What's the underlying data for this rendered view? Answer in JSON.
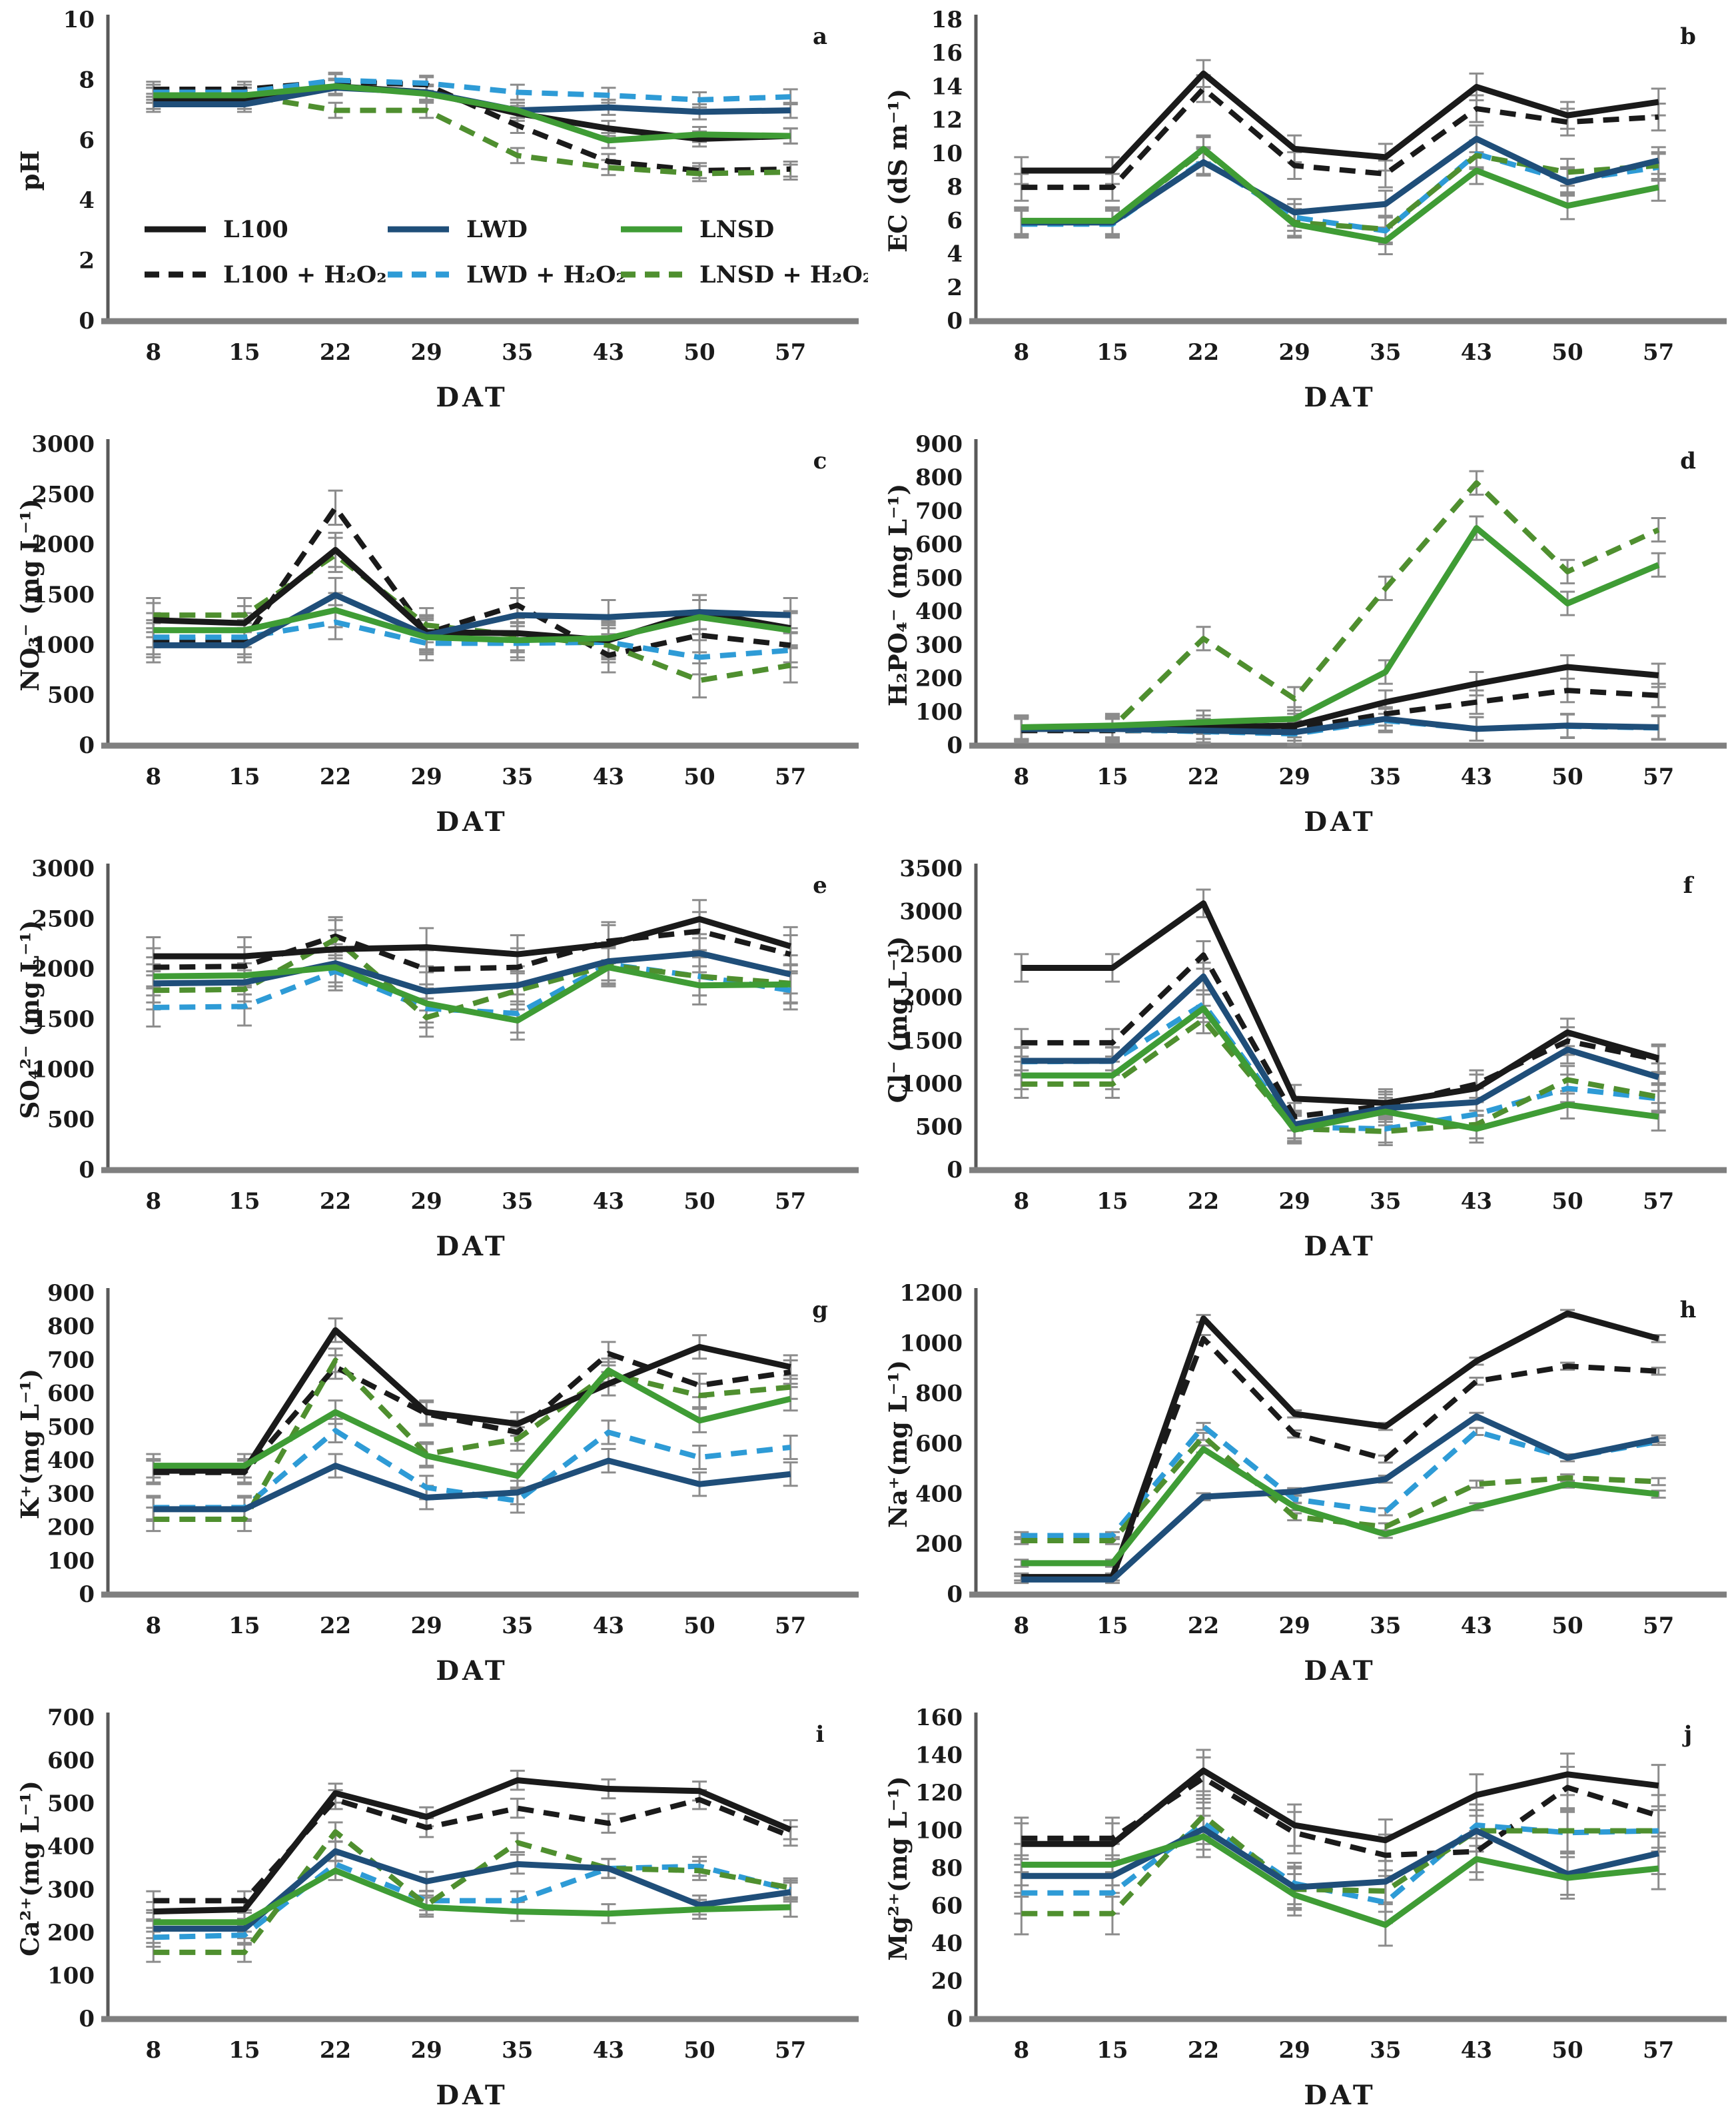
{
  "figure": {
    "xlabel": "DAT",
    "x_categories": [
      "8",
      "15",
      "22",
      "29",
      "35",
      "43",
      "50",
      "57"
    ],
    "axis_color": "#595959",
    "baseline_color": "#7f7f7f",
    "error_bar_color": "#8c8c8c",
    "series_styles": {
      "L100": {
        "color": "#1a1a1a",
        "dash": false
      },
      "LWD": {
        "color": "#1f4e79",
        "dash": false
      },
      "LNSD": {
        "color": "#3f9c35",
        "dash": false
      },
      "L100 + H₂O₂": {
        "color": "#1a1a1a",
        "dash": true
      },
      "LWD + H₂O₂": {
        "color": "#2e9bd6",
        "dash": true
      },
      "LNSD + H₂O₂": {
        "color": "#4f8f2f",
        "dash": true
      }
    },
    "legend": {
      "row1": [
        "L100",
        "LWD",
        "LNSD"
      ],
      "row2": [
        "L100 + H₂O₂",
        "LWD + H₂O₂",
        "LNSD + H₂O₂"
      ]
    }
  },
  "chart_data": [
    {
      "type": "line",
      "letter": "a",
      "ylabel": "pH",
      "ylim": [
        0,
        10
      ],
      "ytick": 2,
      "err": 0.25,
      "categories": [
        "8",
        "15",
        "22",
        "29",
        "35",
        "43",
        "50",
        "57"
      ],
      "series": [
        {
          "name": "L100",
          "values": [
            7.3,
            7.3,
            7.8,
            7.6,
            6.9,
            6.4,
            6.05,
            6.15
          ]
        },
        {
          "name": "L100 + H₂O₂",
          "values": [
            7.7,
            7.7,
            7.95,
            7.85,
            6.5,
            5.3,
            5.0,
            5.05
          ]
        },
        {
          "name": "LWD",
          "values": [
            7.2,
            7.2,
            7.75,
            7.6,
            7.0,
            7.1,
            6.95,
            7.0
          ]
        },
        {
          "name": "LWD + H₂O₂",
          "values": [
            7.6,
            7.6,
            8.0,
            7.9,
            7.6,
            7.5,
            7.35,
            7.45
          ]
        },
        {
          "name": "LNSD",
          "values": [
            7.5,
            7.5,
            7.8,
            7.55,
            7.0,
            6.0,
            6.2,
            6.15
          ]
        },
        {
          "name": "LNSD + H₂O₂",
          "values": [
            7.5,
            7.5,
            7.0,
            7.0,
            5.5,
            5.1,
            4.9,
            4.95
          ]
        }
      ],
      "has_legend": true
    },
    {
      "type": "line",
      "letter": "b",
      "ylabel": "EC (dS m⁻¹)",
      "ylim": [
        0,
        18
      ],
      "ytick": 2,
      "err": 0.8,
      "categories": [
        "8",
        "15",
        "22",
        "29",
        "35",
        "43",
        "50",
        "57"
      ],
      "series": [
        {
          "name": "L100",
          "values": [
            9.0,
            9.0,
            14.8,
            10.3,
            9.8,
            14.0,
            12.3,
            13.1
          ]
        },
        {
          "name": "L100 + H₂O₂",
          "values": [
            8.0,
            8.0,
            13.9,
            9.3,
            8.8,
            12.7,
            11.9,
            12.2
          ]
        },
        {
          "name": "LWD",
          "values": [
            5.9,
            5.9,
            9.5,
            6.5,
            7.0,
            10.9,
            8.3,
            9.6
          ]
        },
        {
          "name": "LWD + H₂O₂",
          "values": [
            5.8,
            5.8,
            9.6,
            6.2,
            5.4,
            10.0,
            8.4,
            9.2
          ]
        },
        {
          "name": "LNSD",
          "values": [
            6.0,
            6.0,
            10.3,
            5.8,
            4.8,
            9.0,
            6.9,
            8.0
          ]
        },
        {
          "name": "LNSD + H₂O₂",
          "values": [
            6.0,
            6.0,
            10.2,
            5.9,
            5.5,
            9.9,
            8.9,
            9.3
          ]
        }
      ],
      "has_legend": false
    },
    {
      "type": "line",
      "letter": "c",
      "ylabel": "NO₃⁻ (mg L⁻¹)",
      "ylim": [
        0,
        3000
      ],
      "ytick": 500,
      "err": 170,
      "categories": [
        "8",
        "15",
        "22",
        "29",
        "35",
        "43",
        "50",
        "57"
      ],
      "series": [
        {
          "name": "L100",
          "values": [
            1250,
            1220,
            1950,
            1130,
            1120,
            1050,
            1330,
            1170
          ]
        },
        {
          "name": "L100 + H₂O₂",
          "values": [
            1050,
            1050,
            2370,
            1120,
            1400,
            900,
            1100,
            1000
          ]
        },
        {
          "name": "LWD",
          "values": [
            1000,
            1000,
            1500,
            1100,
            1300,
            1280,
            1330,
            1300
          ]
        },
        {
          "name": "LWD + H₂O₂",
          "values": [
            1080,
            1080,
            1230,
            1020,
            1020,
            1030,
            880,
            950
          ]
        },
        {
          "name": "LNSD",
          "values": [
            1150,
            1150,
            1350,
            1080,
            1050,
            1070,
            1280,
            1150
          ]
        },
        {
          "name": "LNSD + H₂O₂",
          "values": [
            1300,
            1300,
            1900,
            1200,
            1100,
            1000,
            650,
            800
          ]
        }
      ],
      "has_legend": false
    },
    {
      "type": "line",
      "letter": "d",
      "ylabel": "H₂PO₄⁻ (mg L⁻¹)",
      "ylim": [
        0,
        900
      ],
      "ytick": 100,
      "err": 35,
      "categories": [
        "8",
        "15",
        "22",
        "29",
        "35",
        "43",
        "50",
        "57"
      ],
      "series": [
        {
          "name": "L100",
          "values": [
            50,
            50,
            55,
            60,
            130,
            185,
            235,
            210
          ]
        },
        {
          "name": "L100 + H₂O₂",
          "values": [
            45,
            45,
            45,
            50,
            95,
            130,
            165,
            150
          ]
        },
        {
          "name": "LWD",
          "values": [
            50,
            50,
            45,
            40,
            80,
            50,
            60,
            55
          ]
        },
        {
          "name": "LWD + H₂O₂",
          "values": [
            50,
            48,
            42,
            35,
            75,
            50,
            58,
            53
          ]
        },
        {
          "name": "LNSD",
          "values": [
            55,
            60,
            70,
            80,
            220,
            650,
            425,
            540
          ]
        },
        {
          "name": "LNSD + H₂O₂",
          "values": [
            55,
            55,
            320,
            140,
            470,
            785,
            520,
            645
          ]
        }
      ],
      "has_legend": false
    },
    {
      "type": "line",
      "letter": "e",
      "ylabel": "SO₄²⁻ (mg L⁻¹)",
      "ylim": [
        0,
        3000
      ],
      "ytick": 500,
      "err": 190,
      "categories": [
        "8",
        "15",
        "22",
        "29",
        "35",
        "43",
        "50",
        "57"
      ],
      "series": [
        {
          "name": "L100",
          "values": [
            2130,
            2130,
            2200,
            2220,
            2150,
            2250,
            2500,
            2230
          ]
        },
        {
          "name": "L100 + H₂O₂",
          "values": [
            2020,
            2030,
            2330,
            2000,
            2020,
            2280,
            2380,
            2150
          ]
        },
        {
          "name": "LWD",
          "values": [
            1860,
            1870,
            2060,
            1780,
            1840,
            2080,
            2160,
            1950
          ]
        },
        {
          "name": "LWD + H₂O₂",
          "values": [
            1620,
            1630,
            1980,
            1610,
            1560,
            2050,
            1930,
            1790
          ]
        },
        {
          "name": "LNSD",
          "values": [
            1930,
            1940,
            2020,
            1660,
            1490,
            2020,
            1840,
            1850
          ]
        },
        {
          "name": "LNSD + H₂O₂",
          "values": [
            1790,
            1800,
            2300,
            1520,
            1790,
            2040,
            1930,
            1860
          ]
        }
      ],
      "has_legend": false
    },
    {
      "type": "line",
      "letter": "f",
      "ylabel": "Cl⁻ (mg L⁻¹)",
      "ylim": [
        0,
        3500
      ],
      "ytick": 500,
      "err": 160,
      "categories": [
        "8",
        "15",
        "22",
        "29",
        "35",
        "43",
        "50",
        "57"
      ],
      "series": [
        {
          "name": "L100",
          "values": [
            2350,
            2350,
            3100,
            830,
            780,
            950,
            1600,
            1300
          ]
        },
        {
          "name": "L100 + H₂O₂",
          "values": [
            1480,
            1480,
            2500,
            620,
            750,
            1000,
            1500,
            1280
          ]
        },
        {
          "name": "LWD",
          "values": [
            1270,
            1270,
            2250,
            530,
            720,
            790,
            1400,
            1080
          ]
        },
        {
          "name": "LWD + H₂O₂",
          "values": [
            1260,
            1265,
            1930,
            500,
            480,
            650,
            950,
            830
          ]
        },
        {
          "name": "LNSD",
          "values": [
            1100,
            1100,
            1880,
            470,
            680,
            480,
            760,
            620
          ]
        },
        {
          "name": "LNSD + H₂O₂",
          "values": [
            1000,
            1000,
            1750,
            480,
            450,
            530,
            1050,
            850
          ]
        }
      ],
      "has_legend": false
    },
    {
      "type": "line",
      "letter": "g",
      "ylabel": "K⁺(mg L⁻¹)",
      "ylim": [
        0,
        900
      ],
      "ytick": 100,
      "err": 35,
      "categories": [
        "8",
        "15",
        "22",
        "29",
        "35",
        "43",
        "50",
        "57"
      ],
      "series": [
        {
          "name": "L100",
          "values": [
            370,
            370,
            790,
            545,
            510,
            630,
            740,
            680
          ]
        },
        {
          "name": "L100 + H₂O₂",
          "values": [
            365,
            365,
            680,
            540,
            485,
            720,
            625,
            665
          ]
        },
        {
          "name": "LWD",
          "values": [
            255,
            255,
            385,
            290,
            305,
            400,
            330,
            360
          ]
        },
        {
          "name": "LWD + H₂O₂",
          "values": [
            260,
            260,
            490,
            320,
            280,
            485,
            410,
            440
          ]
        },
        {
          "name": "LNSD",
          "values": [
            385,
            385,
            545,
            415,
            355,
            670,
            520,
            585
          ]
        },
        {
          "name": "LNSD + H₂O₂",
          "values": [
            225,
            225,
            700,
            420,
            465,
            660,
            595,
            620
          ]
        }
      ],
      "has_legend": false
    },
    {
      "type": "line",
      "letter": "h",
      "ylabel": "Na⁺(mg L⁻¹)",
      "ylim": [
        0,
        1200
      ],
      "ytick": 200,
      "err": 14,
      "categories": [
        "8",
        "15",
        "22",
        "29",
        "35",
        "43",
        "50",
        "57"
      ],
      "series": [
        {
          "name": "L100",
          "values": [
            70,
            70,
            1100,
            720,
            670,
            930,
            1120,
            1020
          ]
        },
        {
          "name": "L100 + H₂O₂",
          "values": [
            70,
            70,
            1020,
            640,
            540,
            850,
            910,
            890
          ]
        },
        {
          "name": "LWD",
          "values": [
            60,
            60,
            390,
            410,
            460,
            710,
            545,
            620
          ]
        },
        {
          "name": "LWD + H₂O₂",
          "values": [
            235,
            235,
            670,
            380,
            330,
            650,
            545,
            610
          ]
        },
        {
          "name": "LNSD",
          "values": [
            125,
            125,
            580,
            350,
            240,
            350,
            440,
            400
          ]
        },
        {
          "name": "LNSD + H₂O₂",
          "values": [
            215,
            215,
            630,
            310,
            270,
            440,
            465,
            450
          ]
        }
      ],
      "has_legend": false
    },
    {
      "type": "line",
      "letter": "i",
      "ylabel": "Ca²⁺(mg L⁻¹)",
      "ylim": [
        0,
        700
      ],
      "ytick": 100,
      "err": 22,
      "categories": [
        "8",
        "15",
        "22",
        "29",
        "35",
        "43",
        "50",
        "57"
      ],
      "series": [
        {
          "name": "L100",
          "values": [
            250,
            255,
            525,
            470,
            555,
            535,
            530,
            440
          ]
        },
        {
          "name": "L100 + H₂O₂",
          "values": [
            275,
            275,
            510,
            445,
            490,
            455,
            510,
            425
          ]
        },
        {
          "name": "LWD",
          "values": [
            210,
            210,
            390,
            320,
            360,
            350,
            265,
            295
          ]
        },
        {
          "name": "LWD + H₂O₂",
          "values": [
            190,
            195,
            360,
            275,
            275,
            350,
            355,
            300
          ]
        },
        {
          "name": "LNSD",
          "values": [
            225,
            225,
            345,
            260,
            250,
            245,
            255,
            260
          ]
        },
        {
          "name": "LNSD + H₂O₂",
          "values": [
            155,
            155,
            435,
            265,
            410,
            350,
            345,
            305
          ]
        }
      ],
      "has_legend": false
    },
    {
      "type": "line",
      "letter": "j",
      "ylabel": "Mg²⁺(mg L⁻¹)",
      "ylim": [
        0,
        160
      ],
      "ytick": 20,
      "err": 11,
      "categories": [
        "8",
        "15",
        "22",
        "29",
        "35",
        "43",
        "50",
        "57"
      ],
      "series": [
        {
          "name": "L100",
          "values": [
            93,
            93,
            132,
            103,
            95,
            119,
            130,
            124
          ]
        },
        {
          "name": "L100 + H₂O₂",
          "values": [
            96,
            96,
            128,
            99,
            87,
            89,
            123,
            108
          ]
        },
        {
          "name": "LWD",
          "values": [
            76,
            76,
            101,
            70,
            73,
            100,
            77,
            88
          ]
        },
        {
          "name": "LWD + H₂O₂",
          "values": [
            67,
            67,
            104,
            72,
            62,
            103,
            99,
            100
          ]
        },
        {
          "name": "LNSD",
          "values": [
            82,
            82,
            97,
            66,
            50,
            85,
            75,
            80
          ]
        },
        {
          "name": "LNSD + H₂O₂",
          "values": [
            56,
            56,
            108,
            69,
            68,
            100,
            100,
            100
          ]
        }
      ],
      "has_legend": false
    }
  ]
}
